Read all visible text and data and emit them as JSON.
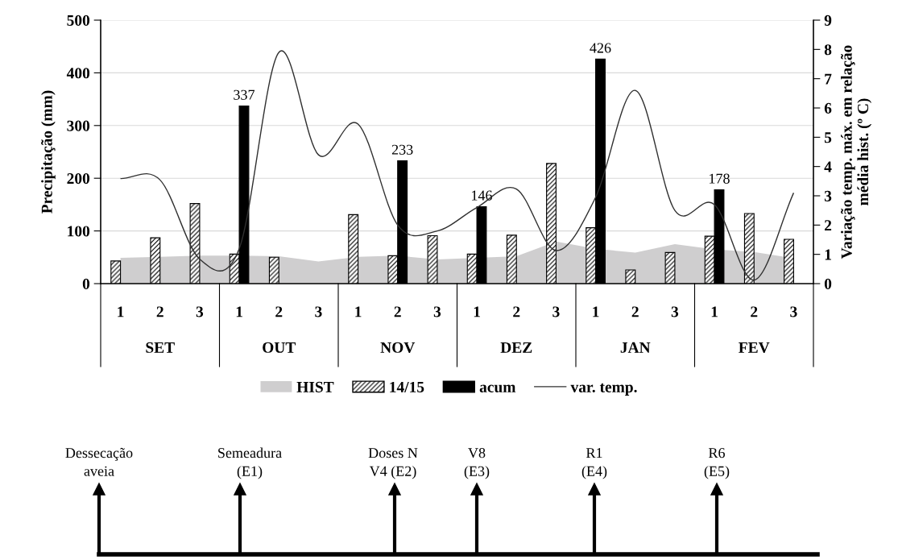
{
  "chart_data": {
    "type": "bar",
    "categories": [
      "1",
      "2",
      "3",
      "1",
      "2",
      "3",
      "1",
      "2",
      "3",
      "1",
      "2",
      "3",
      "1",
      "2",
      "3",
      "1",
      "2",
      "3"
    ],
    "series": [
      {
        "name": "HIST",
        "type": "area",
        "color": "#cfcecf",
        "values": [
          49,
          51,
          53,
          53,
          52,
          42,
          51,
          53,
          46,
          49,
          52,
          80,
          66,
          59,
          75,
          65,
          60,
          48
        ]
      },
      {
        "name": "14/15",
        "color": "#000000",
        "values": [
          43,
          87,
          152,
          56,
          50,
          null,
          131,
          53,
          91,
          56,
          92,
          228,
          106,
          26,
          59,
          90,
          133,
          84
        ]
      },
      {
        "name": "acum",
        "color": "#000000",
        "values": [
          null,
          null,
          null,
          337,
          null,
          null,
          null,
          233,
          null,
          146,
          null,
          null,
          426,
          null,
          null,
          178,
          null,
          null
        ],
        "value_labels": [
          null,
          null,
          null,
          "337",
          null,
          null,
          null,
          "233",
          null,
          "146",
          null,
          null,
          "426",
          null,
          null,
          "178",
          null,
          null
        ]
      },
      {
        "name": "var. temp.",
        "type": "line",
        "axis": "y2",
        "color": "#303030",
        "values": [
          3.59,
          3.54,
          0.84,
          1.2,
          7.9,
          4.4,
          5.45,
          2.0,
          1.8,
          2.6,
          3.23,
          1.13,
          2.95,
          6.6,
          2.5,
          2.7,
          0.12,
          3.1
        ]
      }
    ],
    "ylabel": "Precipitação (mm)",
    "y2label": "Variação temp. máx. em relação\nmédia hist. (º C)",
    "ylim": [
      0,
      500
    ],
    "yticks": [
      0,
      100,
      200,
      300,
      400,
      500
    ],
    "y2lim": [
      0,
      9
    ],
    "y2ticks": [
      0,
      1,
      2,
      3,
      4,
      5,
      6,
      7,
      8,
      9
    ],
    "grid": "y",
    "legend": "bottom",
    "line_style": "solid",
    "marker": "none",
    "annotations": [
      "SET",
      "OUT",
      "NOV",
      "DEZ",
      "JAN",
      "FEV",
      "Dessecação\naveia",
      "Semeadura\n(E1)",
      "Doses N\nV4 (E2)",
      "V8\n(E3)",
      "R1\n(E4)",
      "R6\n(E5)"
    ]
  }
}
